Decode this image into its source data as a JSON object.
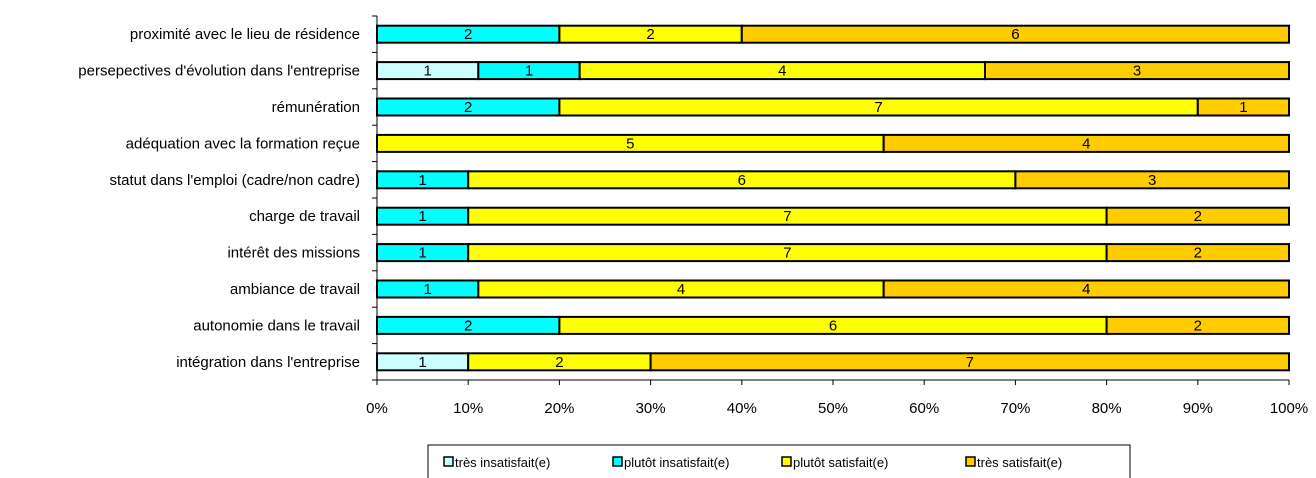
{
  "chart_data": {
    "type": "bar",
    "orientation": "horizontal",
    "stacked": "percent",
    "title": "",
    "xlabel": "",
    "ylabel": "",
    "xlim": [
      0,
      100
    ],
    "x_ticks": [
      "0%",
      "10%",
      "20%",
      "30%",
      "40%",
      "50%",
      "60%",
      "70%",
      "80%",
      "90%",
      "100%"
    ],
    "grid": false,
    "legend_position": "bottom",
    "categories": [
      "proximité avec le lieu de résidence",
      "persepectives d'évolution dans l'entreprise",
      "rémunération",
      "adéquation avec la formation reçue",
      "statut dans l'emploi (cadre/non cadre)",
      "charge de travail",
      "intérêt des missions",
      "ambiance de travail",
      "autonomie dans le travail",
      "intégration dans l'entreprise"
    ],
    "series": [
      {
        "name": "très insatisfait(e)",
        "color": "#ccffff",
        "values": [
          0,
          1,
          0,
          0,
          0,
          0,
          0,
          0,
          0,
          1
        ]
      },
      {
        "name": "plutôt insatisfait(e)",
        "color": "#00ffff",
        "values": [
          2,
          1,
          2,
          0,
          1,
          1,
          1,
          1,
          2,
          0
        ]
      },
      {
        "name": "plutôt satisfait(e)",
        "color": "#ffff00",
        "values": [
          2,
          4,
          7,
          5,
          6,
          7,
          7,
          4,
          6,
          2
        ]
      },
      {
        "name": "très satisfait(e)",
        "color": "#ffcc00",
        "values": [
          6,
          3,
          1,
          4,
          3,
          2,
          2,
          4,
          2,
          7
        ]
      }
    ]
  }
}
